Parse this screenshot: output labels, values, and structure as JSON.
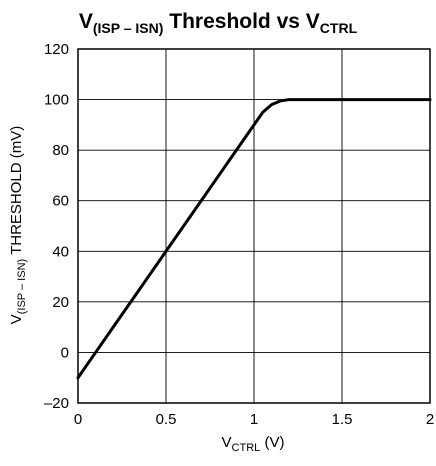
{
  "chart_data": {
    "type": "line",
    "title": {
      "prefix": "V",
      "prefix_sub": "(ISP – ISN)",
      "middle": " Threshold vs V",
      "suffix_sub": "CTRL"
    },
    "xlabel": {
      "main": "V",
      "sub": "CTRL",
      "unit": " (V)"
    },
    "ylabel": {
      "main": "V",
      "sub": "(ISP – ISN)",
      "rest": " THRESHOLD (mV)"
    },
    "xlim": [
      0,
      2
    ],
    "ylim": [
      -20,
      120
    ],
    "x_ticks": [
      0,
      0.5,
      1,
      1.5,
      2
    ],
    "x_tick_labels": [
      "0",
      "0.5",
      "1",
      "1.5",
      "2"
    ],
    "y_ticks": [
      120,
      100,
      80,
      60,
      40,
      20,
      0,
      -20
    ],
    "y_tick_labels": [
      "120",
      "100",
      "80",
      "60",
      "40",
      "20",
      "0",
      "–20"
    ],
    "grid": true,
    "series": [
      {
        "x": [
          0,
          0.1,
          0.2,
          0.3,
          0.4,
          0.5,
          0.6,
          0.7,
          0.8,
          0.9,
          0.95,
          1.0,
          1.05,
          1.1,
          1.15,
          1.2,
          1.3,
          1.4,
          1.5,
          1.6,
          1.8,
          2.0
        ],
        "y": [
          -10,
          0,
          10,
          20,
          30,
          40,
          50,
          60,
          70,
          80,
          85,
          90,
          95,
          98,
          99.5,
          100,
          100,
          100,
          100,
          100,
          100,
          100
        ],
        "color": "#000000"
      }
    ]
  }
}
